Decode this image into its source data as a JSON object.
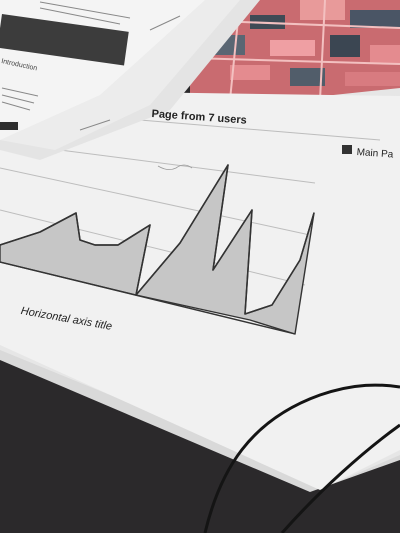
{
  "paper": {
    "chart": {
      "title": "Page from 7 users",
      "legend_label": "Main Pa",
      "x_axis_title": "Horizontal axis title",
      "area_color": "#c6c6c6",
      "legend_swatch_color": "#333333"
    },
    "background_page": {
      "section_heading": "Introduction"
    }
  },
  "colors": {
    "paper": "#f2f2f2",
    "table_surface": "#262426",
    "fabric_pink": "#d9757a",
    "cable": "#161616"
  }
}
